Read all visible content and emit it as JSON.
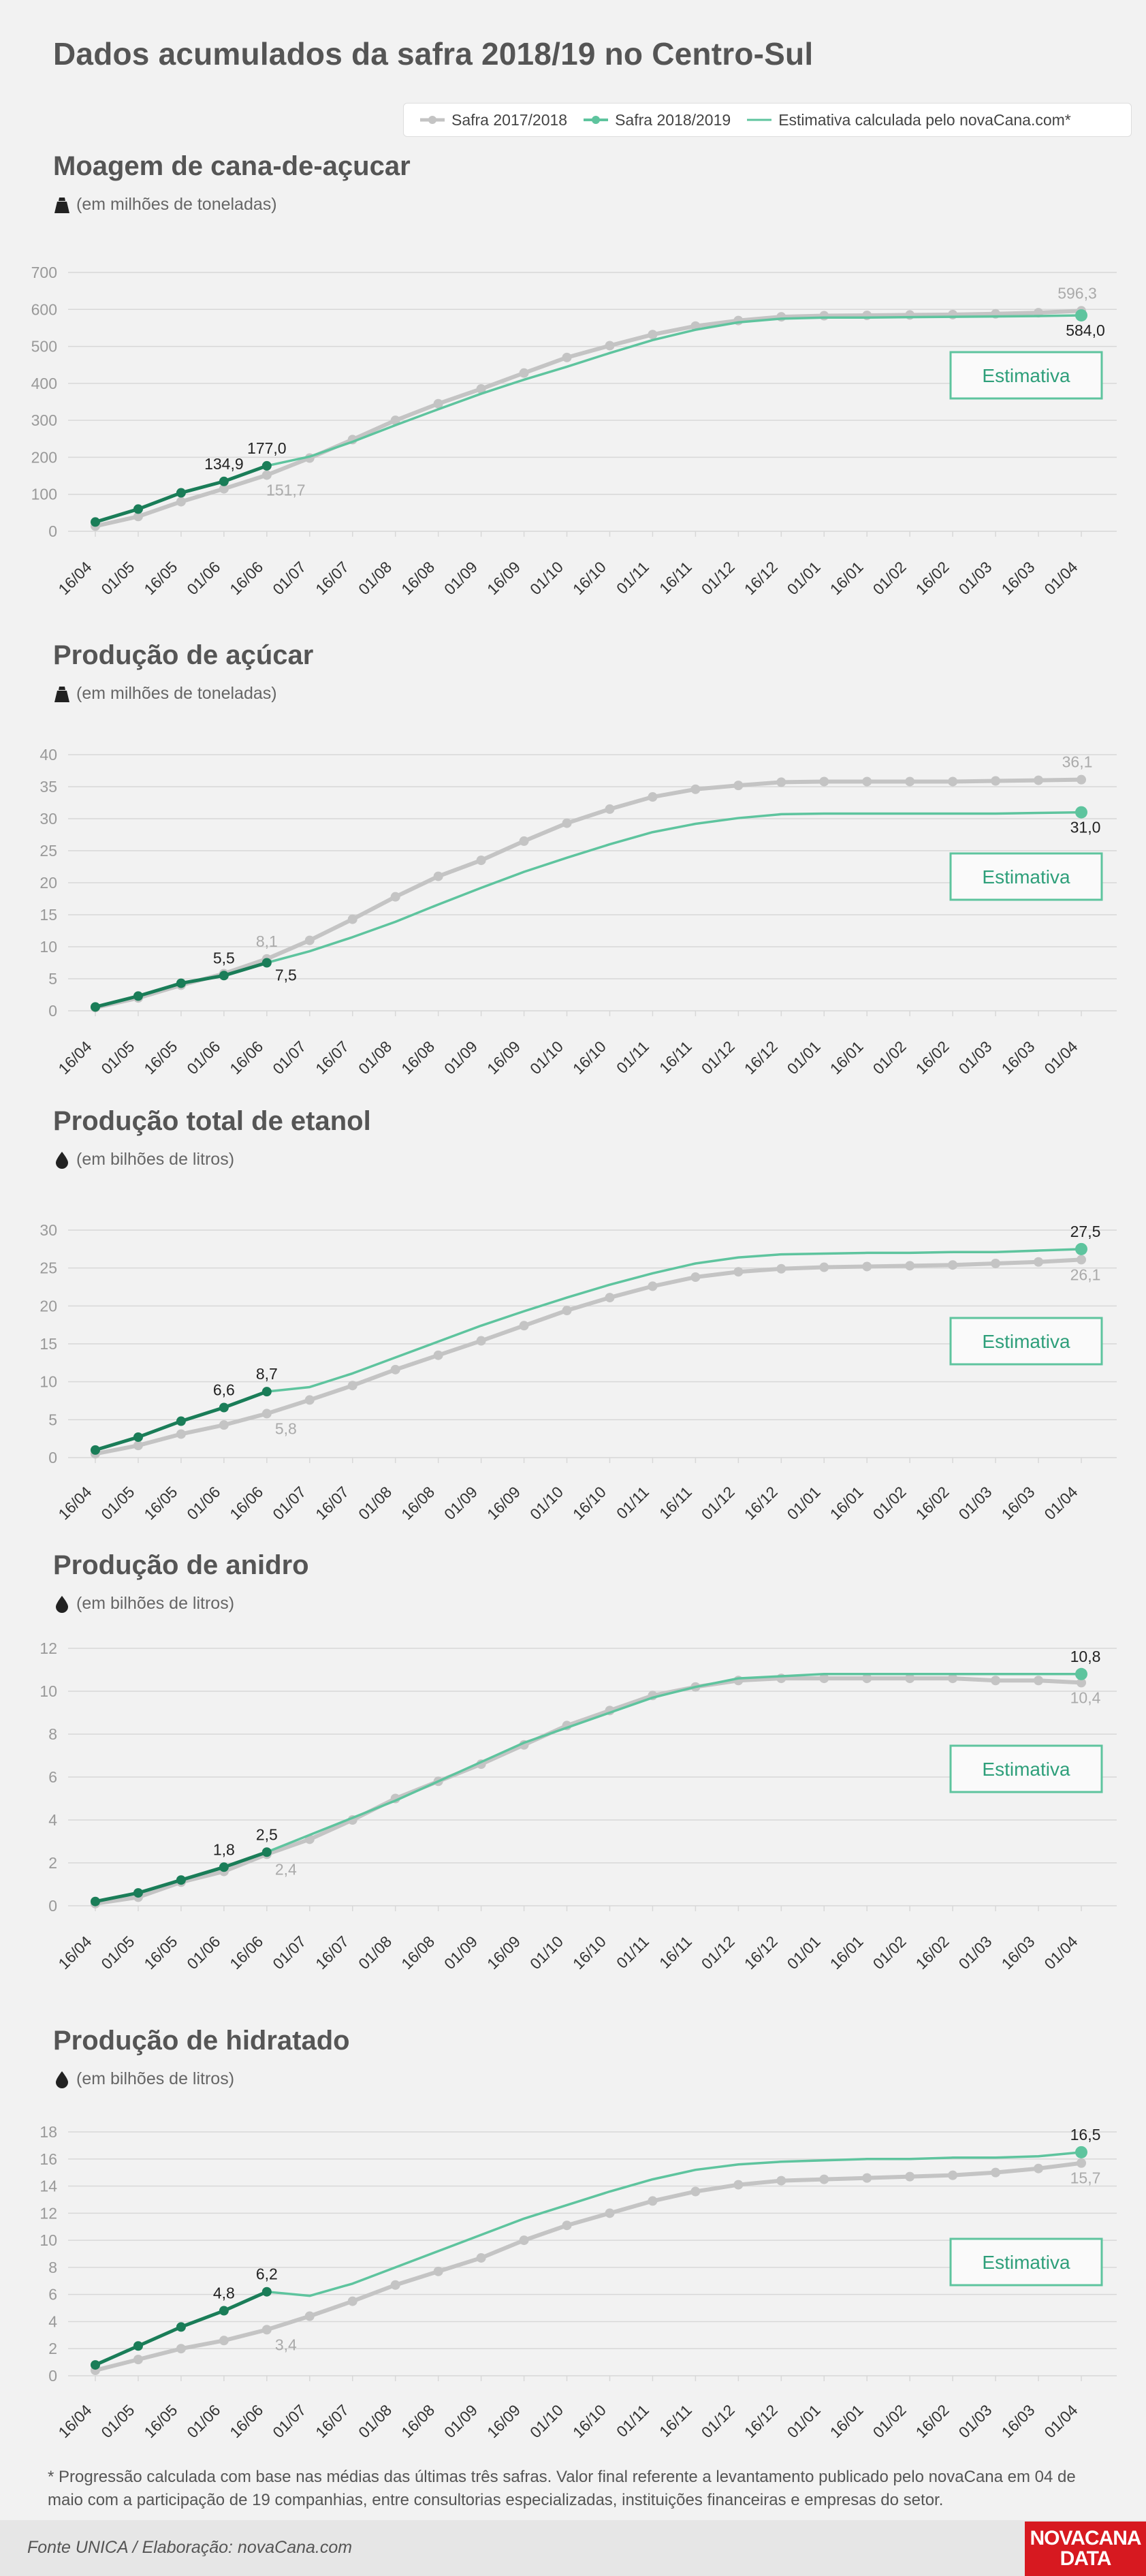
{
  "title": "Dados acumulados da safra 2018/19 no Centro-Sul",
  "legend": {
    "items": [
      {
        "label": "Safra 2017/2018",
        "color": "#c4c4c4"
      },
      {
        "label": "Safra 2018/2019",
        "color": "#5ec49e"
      },
      {
        "label": "Estimativa calculada pelo novaCana.com*",
        "color": "#5ec49e"
      }
    ]
  },
  "colors": {
    "prev_season": "#c4c4c4",
    "current_season": "#1a7d58",
    "current_end_dot": "#5ec49e",
    "estimate": "#5ec49e",
    "grid": "#d8d8d8",
    "axis_text": "#999999"
  },
  "x_categories": [
    "16/04",
    "01/05",
    "16/05",
    "01/06",
    "16/06",
    "01/07",
    "16/07",
    "01/08",
    "16/08",
    "01/09",
    "16/09",
    "01/10",
    "16/10",
    "01/11",
    "16/11",
    "01/12",
    "16/12",
    "01/01",
    "16/01",
    "01/02",
    "16/02",
    "01/03",
    "16/03",
    "01/04"
  ],
  "estimate_box_label": "Estimativa",
  "chart_data": [
    {
      "type": "line",
      "title": "Moagem de cana-de-açucar",
      "ylabel": "(em milhões de toneladas)",
      "unit_icon": "weight-icon",
      "ylim": [
        0,
        700
      ],
      "yticks": [
        0,
        100,
        200,
        300,
        400,
        500,
        600,
        700
      ],
      "grid": true,
      "series": [
        {
          "name": "Safra 2017/2018",
          "values": [
            14,
            40,
            80,
            115,
            152,
            198,
            248,
            300,
            345,
            385,
            428,
            470,
            502,
            532,
            555,
            570,
            580,
            583,
            584,
            585,
            586,
            588,
            591,
            596.3
          ]
        },
        {
          "name": "Safra 2018/2019",
          "values": [
            25,
            60,
            104,
            134.9,
            177.0
          ]
        },
        {
          "name": "Estimativa calculada pelo novaCana.com*",
          "values": [
            177.0,
            202,
            242,
            287,
            330,
            372,
            410,
            445,
            482,
            517,
            545,
            565,
            575,
            578,
            578,
            579,
            580,
            581,
            582,
            584.0
          ]
        }
      ],
      "labels": {
        "prev_mid": "151,7",
        "prev_end": "596,3",
        "cur_mid_prev": "134,9",
        "cur_mid": "177,0",
        "cur_end": "584,0"
      }
    },
    {
      "type": "line",
      "title": "Produção de açúcar",
      "ylabel": "(em milhões de toneladas)",
      "unit_icon": "weight-icon",
      "ylim": [
        0,
        40
      ],
      "yticks": [
        0,
        5,
        10,
        15,
        20,
        25,
        30,
        35,
        40
      ],
      "grid": true,
      "series": [
        {
          "name": "Safra 2017/2018",
          "values": [
            0.5,
            2.0,
            4.0,
            5.8,
            8.1,
            11.0,
            14.3,
            17.8,
            21.0,
            23.5,
            26.5,
            29.3,
            31.5,
            33.4,
            34.6,
            35.2,
            35.7,
            35.8,
            35.8,
            35.8,
            35.8,
            35.9,
            36.0,
            36.1
          ]
        },
        {
          "name": "Safra 2018/2019",
          "values": [
            0.6,
            2.3,
            4.3,
            5.5,
            7.5
          ]
        },
        {
          "name": "Estimativa calculada pelo novaCana.com*",
          "values": [
            7.5,
            9.3,
            11.5,
            13.9,
            16.6,
            19.2,
            21.7,
            23.9,
            26.0,
            27.9,
            29.2,
            30.1,
            30.7,
            30.8,
            30.8,
            30.8,
            30.8,
            30.8,
            30.9,
            31.0
          ]
        }
      ],
      "labels": {
        "prev_mid": "8,1",
        "prev_end": "36,1",
        "cur_mid_prev": "5,5",
        "cur_mid": "7,5",
        "cur_end": "31,0"
      }
    },
    {
      "type": "line",
      "title": "Produção total de etanol",
      "ylabel": "(em bilhões de litros)",
      "unit_icon": "drop-icon",
      "ylim": [
        0,
        30
      ],
      "yticks": [
        0,
        5,
        10,
        15,
        20,
        25,
        30
      ],
      "grid": true,
      "series": [
        {
          "name": "Safra 2017/2018",
          "values": [
            0.5,
            1.6,
            3.1,
            4.3,
            5.8,
            7.6,
            9.5,
            11.6,
            13.5,
            15.4,
            17.4,
            19.4,
            21.1,
            22.6,
            23.8,
            24.5,
            24.9,
            25.1,
            25.2,
            25.3,
            25.4,
            25.6,
            25.8,
            26.1
          ]
        },
        {
          "name": "Safra 2018/2019",
          "values": [
            1.0,
            2.7,
            4.8,
            6.6,
            8.7
          ]
        },
        {
          "name": "Estimativa calculada pelo novaCana.com*",
          "values": [
            8.7,
            9.3,
            11.1,
            13.2,
            15.3,
            17.4,
            19.3,
            21.1,
            22.8,
            24.3,
            25.6,
            26.4,
            26.8,
            26.9,
            27.0,
            27.0,
            27.1,
            27.1,
            27.3,
            27.5
          ]
        }
      ],
      "labels": {
        "prev_mid": "5,8",
        "prev_end": "26,1",
        "cur_mid_prev": "6,6",
        "cur_mid": "8,7",
        "cur_end": "27,5"
      }
    },
    {
      "type": "line",
      "title": "Produção de anidro",
      "ylabel": "(em bilhões de litros)",
      "unit_icon": "drop-icon",
      "ylim": [
        0,
        12
      ],
      "yticks": [
        0,
        2,
        4,
        6,
        8,
        10,
        12
      ],
      "grid": true,
      "series": [
        {
          "name": "Safra 2017/2018",
          "values": [
            0.1,
            0.4,
            1.1,
            1.6,
            2.4,
            3.1,
            4.0,
            5.0,
            5.8,
            6.6,
            7.5,
            8.4,
            9.1,
            9.8,
            10.2,
            10.5,
            10.6,
            10.6,
            10.6,
            10.6,
            10.6,
            10.5,
            10.5,
            10.4
          ]
        },
        {
          "name": "Safra 2018/2019",
          "values": [
            0.2,
            0.6,
            1.2,
            1.8,
            2.5
          ]
        },
        {
          "name": "Estimativa calculada pelo novaCana.com*",
          "values": [
            2.5,
            3.3,
            4.1,
            4.9,
            5.8,
            6.7,
            7.6,
            8.3,
            9.0,
            9.7,
            10.2,
            10.6,
            10.7,
            10.8,
            10.8,
            10.8,
            10.8,
            10.8,
            10.8,
            10.8
          ]
        }
      ],
      "labels": {
        "prev_mid": "2,4",
        "prev_end": "10,4",
        "cur_mid_prev": "1,8",
        "cur_mid": "2,5",
        "cur_end": "10,8"
      }
    },
    {
      "type": "line",
      "title": "Produção de hidratado",
      "ylabel": "(em bilhões de litros)",
      "unit_icon": "drop-icon",
      "ylim": [
        0,
        18
      ],
      "yticks": [
        0,
        2,
        4,
        6,
        8,
        10,
        12,
        14,
        16,
        18
      ],
      "grid": true,
      "series": [
        {
          "name": "Safra 2017/2018",
          "values": [
            0.4,
            1.2,
            2.0,
            2.6,
            3.4,
            4.4,
            5.5,
            6.7,
            7.7,
            8.7,
            10.0,
            11.1,
            12.0,
            12.9,
            13.6,
            14.1,
            14.4,
            14.5,
            14.6,
            14.7,
            14.8,
            15.0,
            15.3,
            15.7
          ]
        },
        {
          "name": "Safra 2018/2019",
          "values": [
            0.8,
            2.2,
            3.6,
            4.8,
            6.2
          ]
        },
        {
          "name": "Estimativa calculada pelo novaCana.com*",
          "values": [
            6.2,
            5.9,
            6.8,
            8.0,
            9.2,
            10.4,
            11.6,
            12.6,
            13.6,
            14.5,
            15.2,
            15.6,
            15.8,
            15.9,
            16.0,
            16.0,
            16.1,
            16.1,
            16.2,
            16.5
          ]
        }
      ],
      "labels": {
        "prev_mid": "3,4",
        "prev_end": "15,7",
        "cur_mid_prev": "4,8",
        "cur_mid": "6,2",
        "cur_end": "16,5"
      }
    }
  ],
  "footnote": "* Progressão calculada com base nas médias das últimas três safras. Valor final referente a levantamento publicado pelo novaCana em 04 de maio com a participação de 19 companhias, entre consultorias especializadas, instituições financeiras e empresas do setor.",
  "source": "Fonte UNICA / Elaboração: novaCana.com",
  "logo": {
    "line1": "NOVACANA",
    "line2": "DATA"
  }
}
